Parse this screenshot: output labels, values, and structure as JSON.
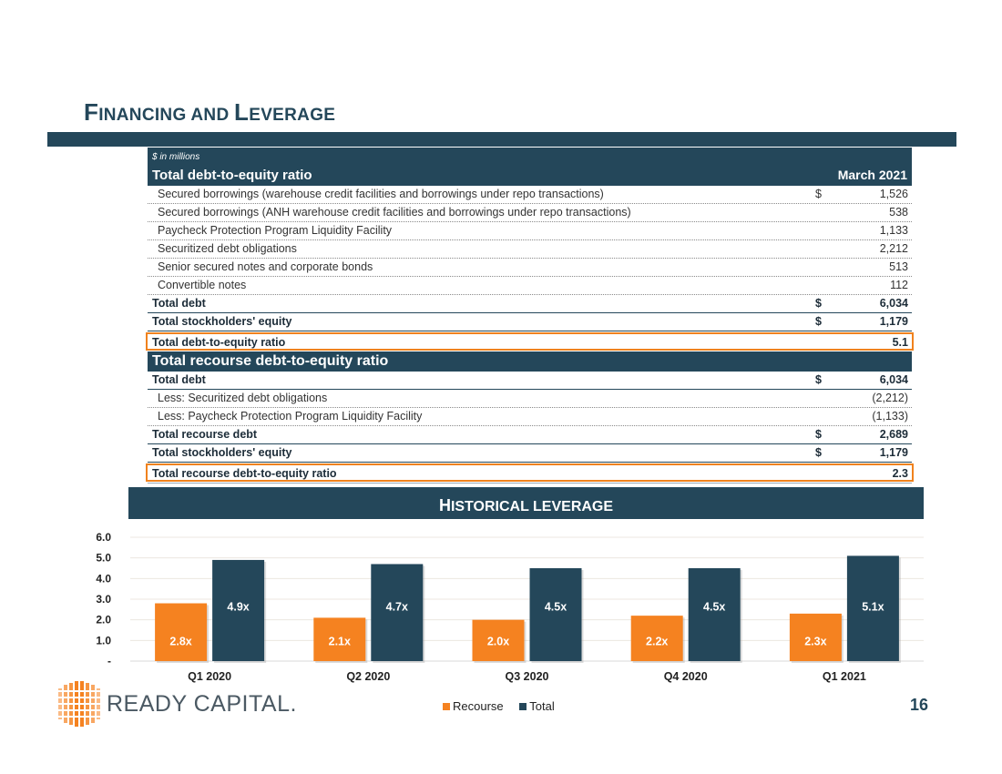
{
  "title": {
    "first_cap": "F",
    "first_rest": "INANCING AND ",
    "second_cap": "L",
    "second_rest": "EVERAGE"
  },
  "table": {
    "unit": "$ in millions",
    "header": "Total debt-to-equity ratio",
    "column": "March 2021",
    "rows1": [
      {
        "label": "Secured borrowings (warehouse credit facilities and borrowings under repo transactions)",
        "cur": "$",
        "value": "1,526"
      },
      {
        "label": "Secured borrowings (ANH warehouse credit facilities and borrowings under repo transactions)",
        "cur": "",
        "value": "538"
      },
      {
        "label": "Paycheck Protection Program Liquidity Facility",
        "cur": "",
        "value": "1,133"
      },
      {
        "label": "Securitized debt obligations",
        "cur": "",
        "value": "2,212"
      },
      {
        "label": "Senior secured notes and corporate bonds",
        "cur": "",
        "value": "513"
      },
      {
        "label": "Convertible notes",
        "cur": "",
        "value": "112"
      }
    ],
    "total_debt": {
      "label": "Total debt",
      "cur": "$",
      "value": "6,034"
    },
    "equity1": {
      "label": "Total stockholders' equity",
      "cur": "$",
      "value": "1,179"
    },
    "ratio1": {
      "label": "Total debt-to-equity ratio",
      "value": "5.1"
    },
    "header2": "Total recourse debt-to-equity ratio",
    "total_debt2": {
      "label": "Total debt",
      "cur": "$",
      "value": "6,034"
    },
    "less1": {
      "label": "Less: Securitized debt obligations",
      "value": "(2,212)"
    },
    "less2": {
      "label": "Less: Paycheck Protection Program Liquidity Facility",
      "value": "(1,133)"
    },
    "recourse_debt": {
      "label": "Total recourse debt",
      "cur": "$",
      "value": "2,689"
    },
    "equity2": {
      "label": "Total stockholders' equity",
      "cur": "$",
      "value": "1,179"
    },
    "ratio2": {
      "label": "Total recourse debt-to-equity ratio",
      "value": "2.3"
    }
  },
  "historical": {
    "cap": "H",
    "rest": "ISTORICAL LEVERAGE"
  },
  "chart_data": {
    "type": "bar",
    "title": "HISTORICAL LEVERAGE",
    "categories": [
      "Q1 2020",
      "Q2 2020",
      "Q3 2020",
      "Q4 2020",
      "Q1 2021"
    ],
    "series": [
      {
        "name": "Recourse",
        "values": [
          2.8,
          2.1,
          2.0,
          2.2,
          2.3
        ],
        "labels": [
          "2.8x",
          "2.1x",
          "2.0x",
          "2.2x",
          "2.3x"
        ],
        "color": "#f58220"
      },
      {
        "name": "Total",
        "values": [
          4.9,
          4.7,
          4.5,
          4.5,
          5.1
        ],
        "labels": [
          "4.9x",
          "4.7x",
          "4.5x",
          "4.5x",
          "5.1x"
        ],
        "color": "#24475a"
      }
    ],
    "yticks": [
      "-",
      "1.0",
      "2.0",
      "3.0",
      "4.0",
      "5.0",
      "6.0"
    ],
    "ylim": [
      0,
      6
    ],
    "grid": true,
    "legend": "bottom"
  },
  "footer": {
    "logo_text": "READY CAPITAL.",
    "page": "16"
  }
}
